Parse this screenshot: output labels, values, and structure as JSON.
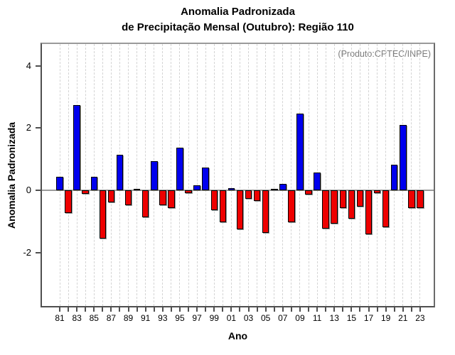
{
  "title": {
    "line1": "Anomalia Padronizada",
    "line2": "de Precipitação Mensal (Outubro): Região 110"
  },
  "annotation": "(Produto:CPTEC/INPE)",
  "chart_data": {
    "type": "bar",
    "title": "Anomalia Padronizada de Precipitação Mensal (Outubro): Região 110",
    "xlabel": "Ano",
    "ylabel": "Anomalia Padronizada",
    "x": [
      1981,
      1982,
      1983,
      1984,
      1985,
      1986,
      1987,
      1988,
      1989,
      1990,
      1991,
      1992,
      1993,
      1994,
      1995,
      1996,
      1997,
      1998,
      1999,
      2000,
      2001,
      2002,
      2003,
      2004,
      2005,
      2006,
      2007,
      2008,
      2009,
      2010,
      2011,
      2012,
      2013,
      2014,
      2015,
      2016,
      2017,
      2018,
      2019,
      2020,
      2021,
      2022,
      2023
    ],
    "values": [
      0.44,
      -0.74,
      2.75,
      -0.11,
      0.44,
      -1.56,
      -0.39,
      1.14,
      -0.49,
      0.05,
      -0.86,
      0.94,
      -0.48,
      -0.58,
      1.36,
      -0.08,
      0.17,
      0.73,
      -0.65,
      -1.03,
      0.07,
      -1.26,
      -0.27,
      -0.35,
      -1.37,
      0.05,
      0.2,
      -1.02,
      2.47,
      -0.14,
      0.58,
      -1.24,
      -1.07,
      -0.58,
      -0.92,
      -0.52,
      -1.41,
      -0.08,
      -1.19,
      0.83,
      2.09,
      -0.58,
      -0.58
    ],
    "x_tick_labels": [
      "81",
      "83",
      "85",
      "87",
      "89",
      "91",
      "93",
      "95",
      "97",
      "99",
      "01",
      "03",
      "05",
      "07",
      "09",
      "11",
      "13",
      "15",
      "17",
      "19",
      "21",
      "23"
    ],
    "yticks": [
      -2,
      0,
      2,
      4
    ],
    "ylim": [
      -3.77,
      4.75
    ],
    "grid": "vertical dashed per year",
    "legend": "none",
    "colors": {
      "positive": "#0000EE",
      "negative": "#EE0000",
      "zero_line": "#9c9c9c",
      "annotation": "#7d7d7d",
      "gridline": "#d4d4d4"
    }
  }
}
